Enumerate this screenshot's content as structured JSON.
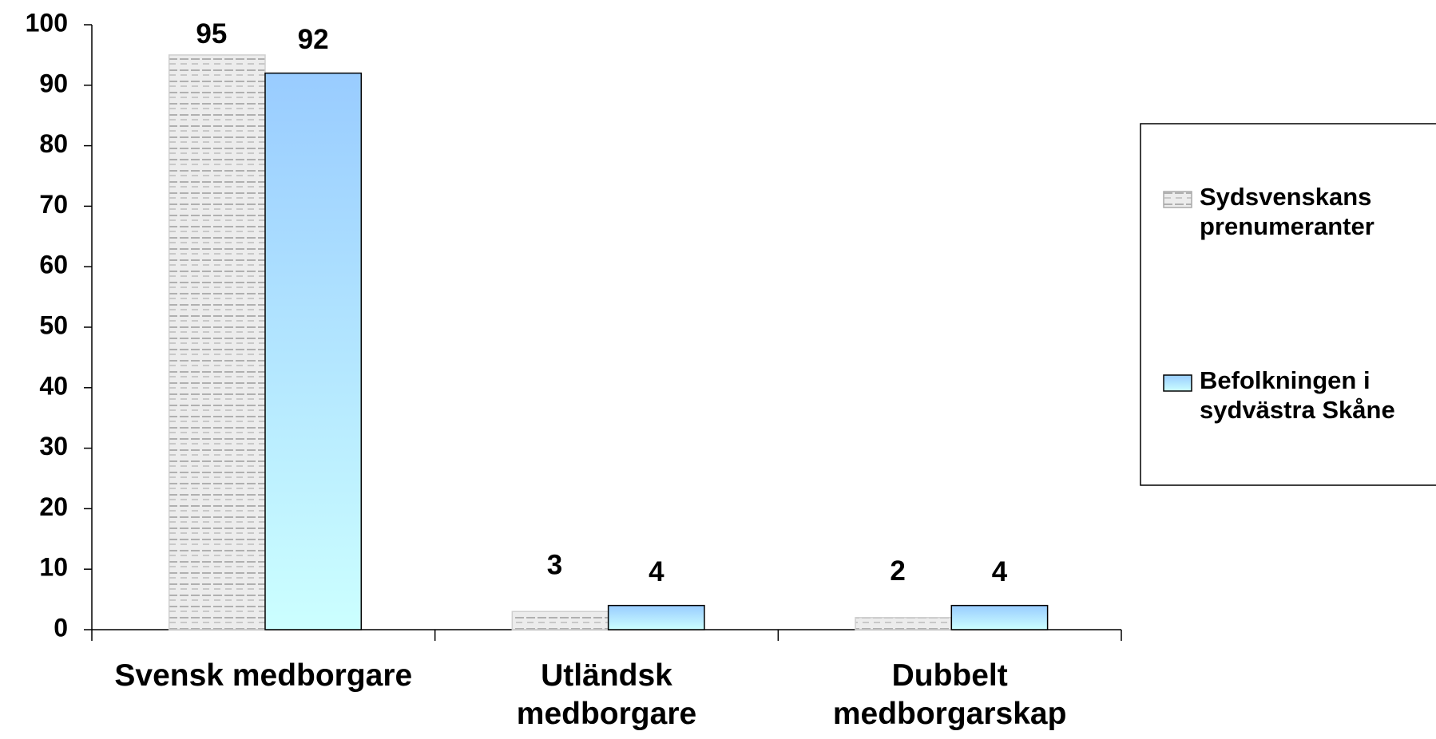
{
  "chart_data": {
    "type": "bar",
    "categories": [
      "Svensk medborgare",
      "Utländsk medborgare",
      "Dubbelt medborgarskap"
    ],
    "series": [
      {
        "name": "Sydsvenskans prenumeranter",
        "color": "#d9d9d9",
        "values": [
          95,
          3,
          2
        ]
      },
      {
        "name": "Befolkningen i sydvästra Skåne",
        "color": "#99ccff",
        "values": [
          92,
          4,
          4
        ]
      }
    ],
    "ylim": [
      0,
      100
    ],
    "yticks": [
      0,
      10,
      20,
      30,
      40,
      50,
      60,
      70,
      80,
      90,
      100
    ],
    "grid": false,
    "legend": "right"
  }
}
